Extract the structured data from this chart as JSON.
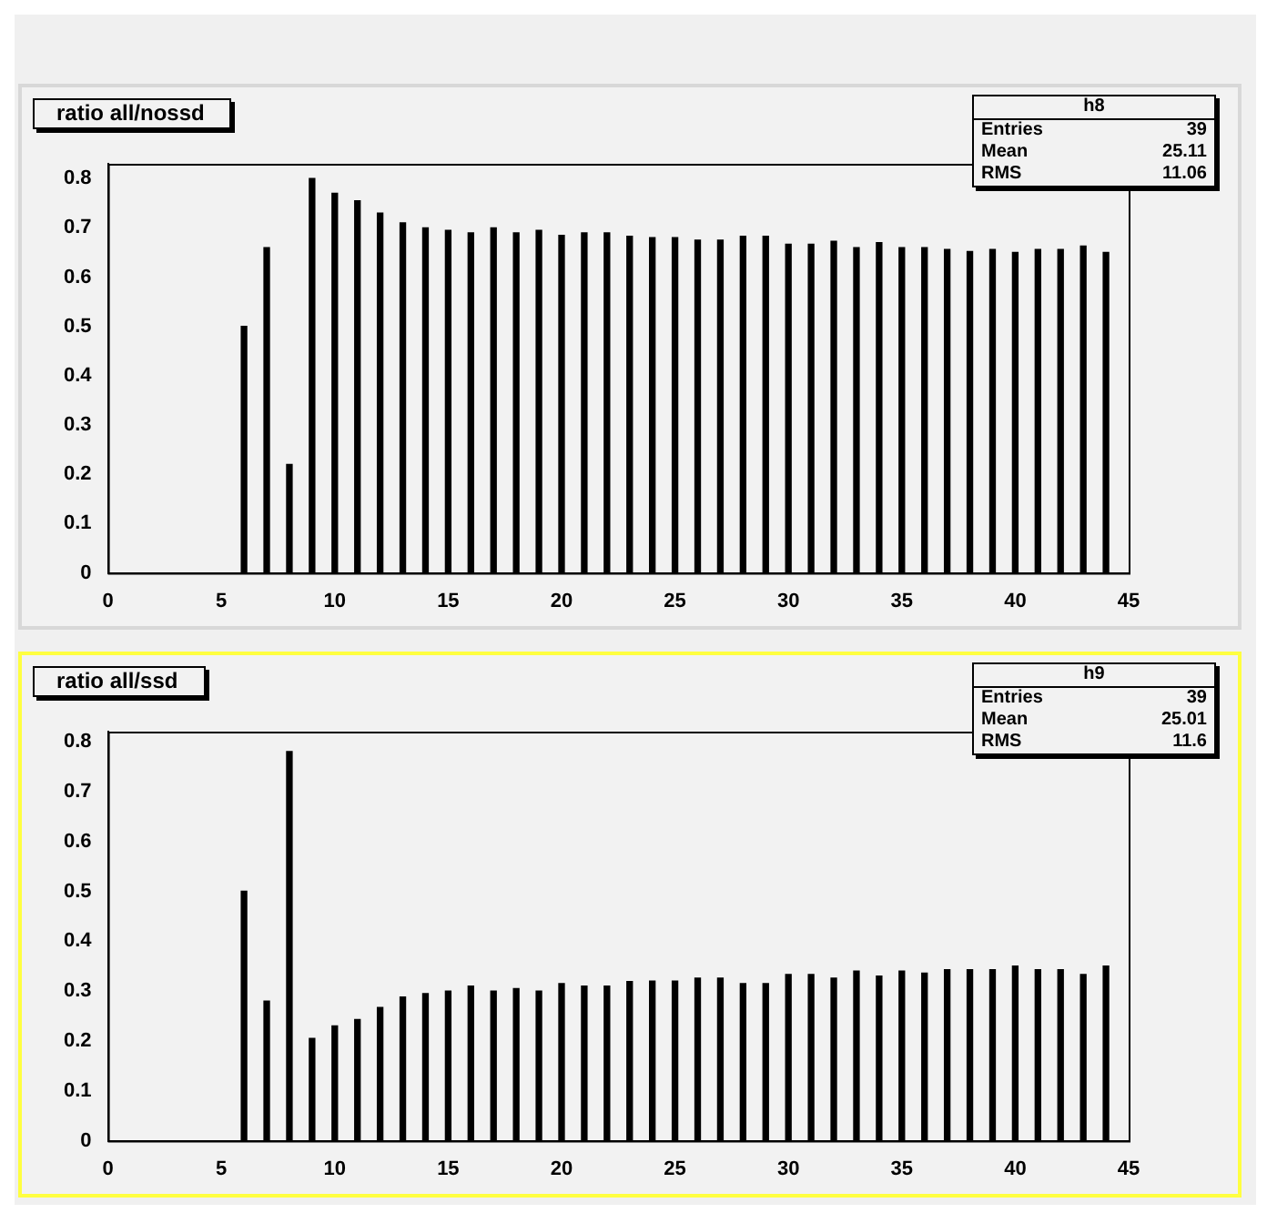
{
  "chart_data": [
    {
      "type": "bar",
      "title": "ratio all/nossd",
      "annotations": [
        "h8",
        "Entries",
        "39",
        "Mean",
        "25.11",
        "RMS",
        "11.06"
      ],
      "color": "#000000",
      "x": [
        6,
        7,
        8,
        9,
        10,
        11,
        12,
        13,
        14,
        15,
        16,
        17,
        18,
        19,
        20,
        21,
        22,
        23,
        24,
        25,
        26,
        27,
        28,
        29,
        30,
        31,
        32,
        33,
        34,
        35,
        36,
        37,
        38,
        39,
        40,
        41,
        42,
        43,
        44
      ],
      "values": [
        0.5,
        0.66,
        0.22,
        0.8,
        0.77,
        0.755,
        0.73,
        0.71,
        0.7,
        0.695,
        0.69,
        0.7,
        0.69,
        0.695,
        0.685,
        0.69,
        0.69,
        0.683,
        0.68,
        0.68,
        0.675,
        0.675,
        0.683,
        0.683,
        0.667,
        0.667,
        0.673,
        0.66,
        0.67,
        0.66,
        0.66,
        0.656,
        0.652,
        0.656,
        0.65,
        0.656,
        0.656,
        0.663,
        0.65
      ],
      "xlim": [
        0,
        45
      ],
      "xticks": [
        0,
        5,
        10,
        15,
        20,
        25,
        30,
        35,
        40,
        45
      ],
      "ylim": [
        0,
        0.83
      ],
      "yticks": [
        0,
        0.1,
        0.2,
        0.3,
        0.4,
        0.5,
        0.6,
        0.7,
        0.8
      ]
    },
    {
      "type": "bar",
      "title": "ratio all/ssd",
      "annotations": [
        "h9",
        "Entries",
        "39",
        "Mean",
        "25.01",
        "RMS",
        "11.6"
      ],
      "color": "#000000",
      "x": [
        6,
        7,
        8,
        9,
        10,
        11,
        12,
        13,
        14,
        15,
        16,
        17,
        18,
        19,
        20,
        21,
        22,
        23,
        24,
        25,
        26,
        27,
        28,
        29,
        30,
        31,
        32,
        33,
        34,
        35,
        36,
        37,
        38,
        39,
        40,
        41,
        42,
        43,
        44
      ],
      "values": [
        0.5,
        0.28,
        0.78,
        0.205,
        0.23,
        0.243,
        0.267,
        0.288,
        0.295,
        0.3,
        0.31,
        0.3,
        0.305,
        0.3,
        0.315,
        0.31,
        0.31,
        0.319,
        0.32,
        0.32,
        0.326,
        0.326,
        0.315,
        0.315,
        0.333,
        0.333,
        0.326,
        0.34,
        0.33,
        0.34,
        0.336,
        0.343,
        0.343,
        0.343,
        0.35,
        0.343,
        0.343,
        0.333,
        0.35
      ],
      "xlim": [
        0,
        45
      ],
      "xticks": [
        0,
        5,
        10,
        15,
        20,
        25,
        30,
        35,
        40,
        45
      ],
      "ylim": [
        0,
        0.82
      ],
      "yticks": [
        0,
        0.1,
        0.2,
        0.3,
        0.4,
        0.5,
        0.6,
        0.7,
        0.8
      ]
    }
  ]
}
